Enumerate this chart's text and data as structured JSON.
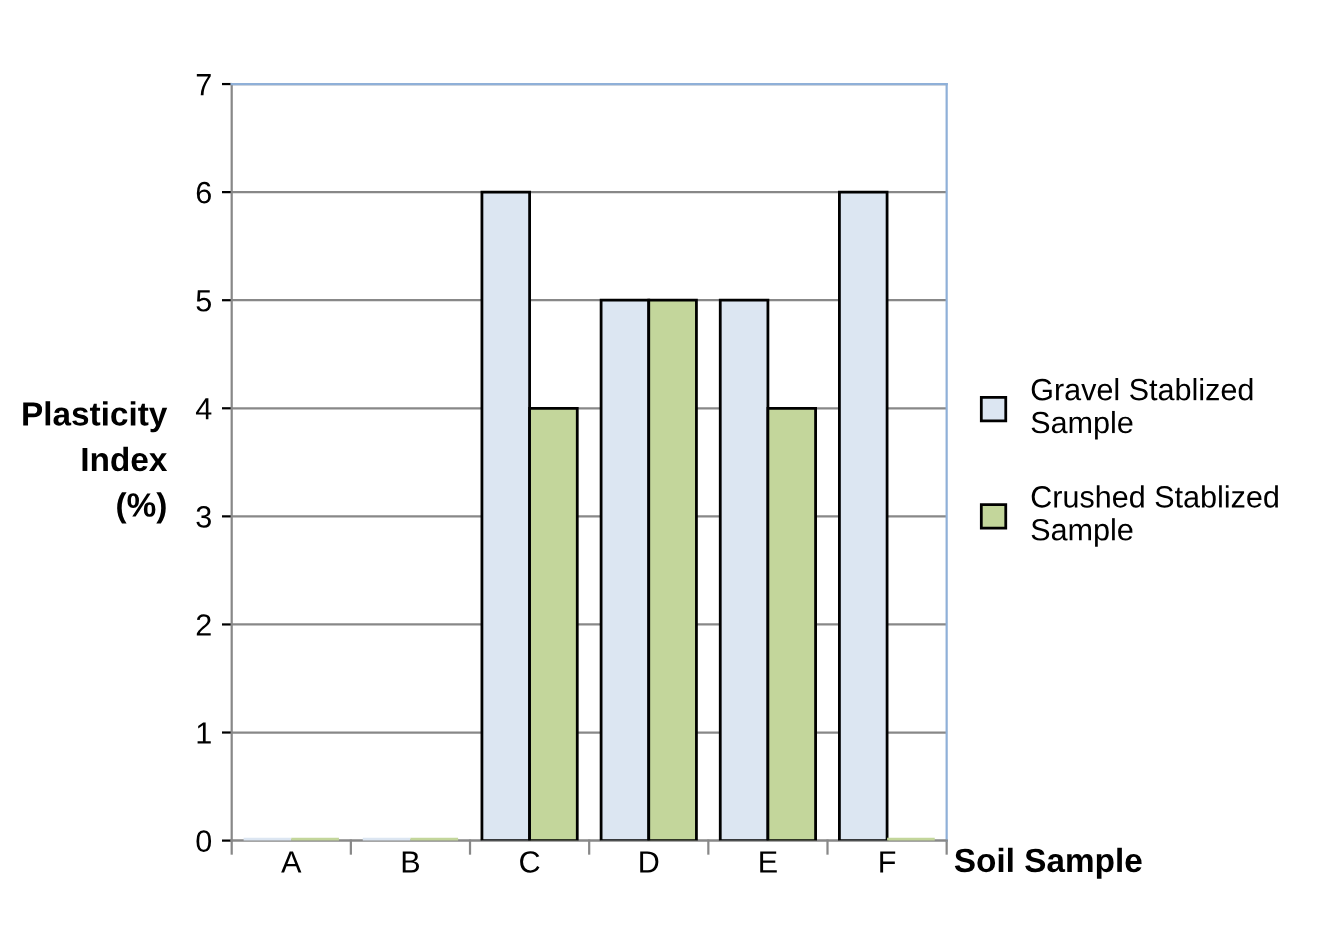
{
  "chart_data": {
    "type": "bar",
    "xlabel": "Soil Sample",
    "ylabel": "Plasticity\nIndex\n(%)",
    "categories": [
      "A",
      "B",
      "C",
      "D",
      "E",
      "F"
    ],
    "series": [
      {
        "name": "Gravel Stablized\nSample",
        "color": "#dce6f2",
        "values": [
          0,
          0,
          6,
          5,
          5,
          6
        ]
      },
      {
        "name": "Crushed Stablized\nSample",
        "color": "#c3d69b",
        "values": [
          0,
          0,
          4,
          5,
          4,
          0
        ]
      }
    ],
    "ylim": [
      0,
      7
    ],
    "yticks": [
      0,
      1,
      2,
      3,
      4,
      5,
      6,
      7
    ],
    "grid": "y",
    "legend": "right"
  }
}
